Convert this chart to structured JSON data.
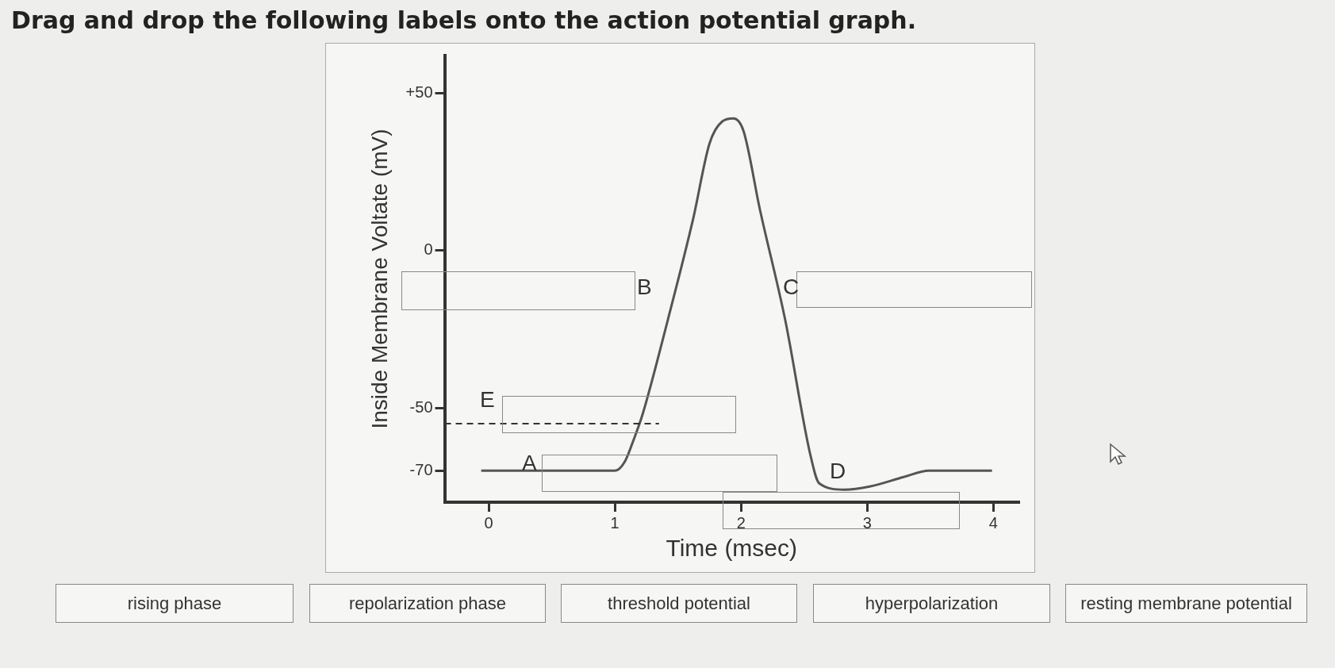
{
  "chart_data": {
    "type": "line",
    "title": "Drag and drop the following labels onto the action potential graph.",
    "xlabel": "Time (msec)",
    "ylabel": "Inside Membrane Voltate (mV)",
    "x": [
      -0.06,
      1.0,
      1.08,
      1.15,
      1.22,
      1.42,
      1.62,
      1.75,
      1.85,
      1.94,
      2.02,
      2.15,
      2.35,
      2.55,
      2.62,
      2.82,
      3.02,
      3.29,
      3.49,
      3.99
    ],
    "series": [
      {
        "color": "#555555",
        "values": [
          -70,
          -70,
          -67,
          -60,
          -52,
          -22,
          10,
          34,
          41,
          42,
          38,
          13,
          -22,
          -65,
          -74,
          -76,
          -75,
          -72,
          -70,
          -70
        ]
      }
    ],
    "xlim": [
      -0.35,
      4.2
    ],
    "xticks": [
      0,
      1,
      2,
      3,
      4
    ],
    "ylim": [
      -80,
      62
    ],
    "yticks": [
      {
        "value": 50,
        "label": "+50"
      },
      0,
      -50,
      -70
    ],
    "grid": false,
    "legend": false,
    "marker": "none",
    "line_style": "solid",
    "ref_lines": [
      {
        "axis": "y",
        "value": -55,
        "color": "#333333",
        "line_style": "dashed"
      }
    ],
    "annotations": [
      "A",
      "B",
      "C",
      "D",
      "E",
      "rising phase",
      "repolarization phase",
      "threshold potential",
      "hyperpolarization",
      "resting membrane potential"
    ]
  }
}
